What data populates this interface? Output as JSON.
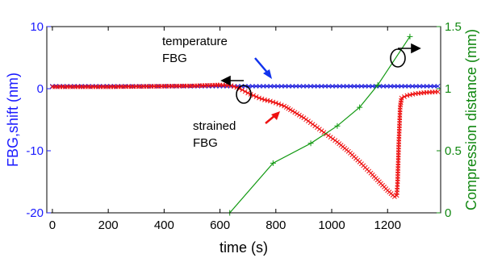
{
  "chart_data": {
    "type": "line",
    "title": "",
    "xlabel": "time (s)",
    "ylabel_left": "FBG,shift (nm)",
    "ylabel_right": "Compression distance (mm)",
    "xlim": [
      -20,
      1390
    ],
    "ylim_left": [
      -20,
      10
    ],
    "ylim_right": [
      0,
      1.5
    ],
    "x_ticks": [
      "0",
      "200",
      "400",
      "600",
      "800",
      "1000",
      "1200"
    ],
    "x_tick_values": [
      0,
      200,
      400,
      600,
      800,
      1000,
      1200
    ],
    "y_left_ticks": [
      "10",
      "0",
      "-10",
      "-20"
    ],
    "y_left_tick_values": [
      10,
      0,
      -10,
      -20
    ],
    "y_right_ticks": [
      "1.5",
      "1",
      "0.5",
      "0"
    ],
    "y_right_tick_values": [
      1.5,
      1,
      0.5,
      0
    ],
    "grid": false,
    "colors": {
      "temperature": "#2222dd",
      "strained": "#ee1111",
      "compression": "#119911",
      "left_axis": "#1a1aff",
      "right_axis": "#118811",
      "arrow_blue": "#1133ee",
      "arrow_red": "#ee1111"
    },
    "series": [
      {
        "axis": "left",
        "marker": "x",
        "x": [
          0,
          1380
        ],
        "y": [
          0.4,
          0.4
        ]
      },
      {
        "axis": "left",
        "marker": "x",
        "x": [
          0,
          100,
          200,
          300,
          400,
          500,
          600,
          640,
          660,
          680,
          700,
          720,
          740,
          760,
          780,
          800,
          830,
          860,
          900,
          940,
          980,
          1020,
          1060,
          1100,
          1140,
          1170,
          1200,
          1225,
          1233,
          1236,
          1240,
          1245,
          1250,
          1270,
          1300,
          1340,
          1380
        ],
        "y": [
          0.3,
          0.3,
          0.3,
          0.35,
          0.4,
          0.45,
          0.6,
          0.5,
          0.2,
          -0.2,
          -0.7,
          -1.1,
          -1.5,
          -1.8,
          -2.0,
          -2.3,
          -2.8,
          -3.6,
          -4.7,
          -6.0,
          -7.3,
          -8.6,
          -10.1,
          -11.8,
          -13.6,
          -15.0,
          -16.4,
          -17.4,
          -17.2,
          -15.0,
          -9.0,
          -3.0,
          -1.5,
          -1.1,
          -0.8,
          -0.6,
          -0.5
        ]
      },
      {
        "axis": "right",
        "marker": "+",
        "x": [
          635,
          790,
          925,
          1020,
          1100,
          1165,
          1280
        ],
        "y": [
          0.0,
          0.4,
          0.56,
          0.7,
          0.85,
          1.03,
          1.42
        ]
      }
    ],
    "annotations": {
      "temperature_line1": "temperature",
      "temperature_line2": "FBG",
      "strained_line1": "strained",
      "strained_line2": "FBG"
    }
  }
}
